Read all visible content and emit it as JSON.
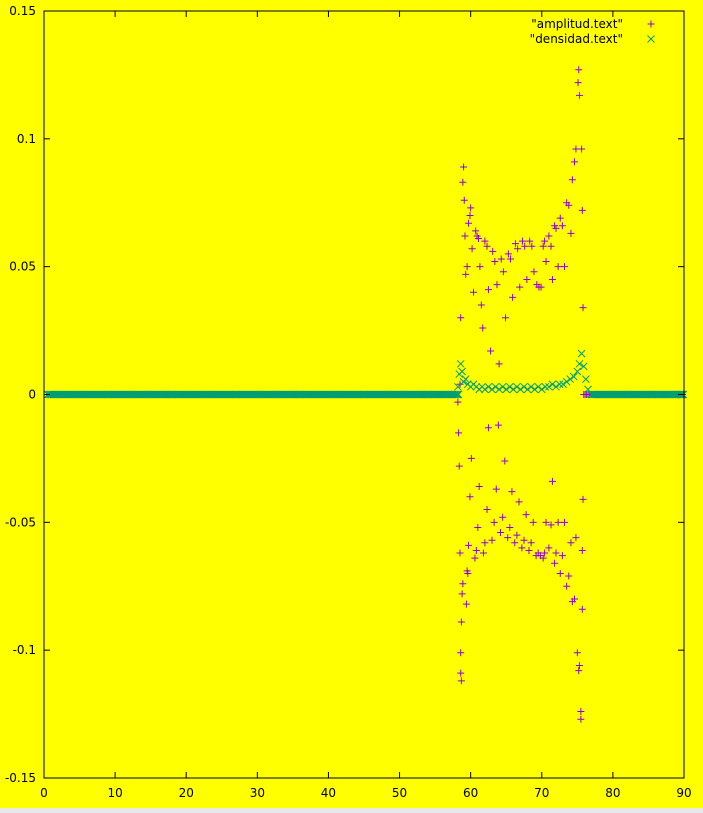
{
  "colors": {
    "background": "#ffff00",
    "axes": "#000000",
    "amplitud": "#9400d3",
    "densidad": "#009e73"
  },
  "chart_data": {
    "type": "scatter",
    "title": "",
    "xlabel": "",
    "ylabel": "",
    "xlim": [
      0,
      90
    ],
    "ylim": [
      -0.15,
      0.15
    ],
    "grid": false,
    "legend_position": "top-right",
    "x_ticks": [
      0,
      10,
      20,
      30,
      40,
      50,
      60,
      70,
      80,
      90
    ],
    "x_tick_labels": [
      "0",
      "10",
      "20",
      "30",
      "40",
      "50",
      "60",
      "70",
      "80",
      "90"
    ],
    "y_ticks": [
      -0.15,
      -0.1,
      -0.05,
      0,
      0.05,
      0.1,
      0.15
    ],
    "y_tick_labels": [
      "-0.15",
      "-0.1",
      "-0.05",
      "0",
      "0.05",
      "0.1",
      "0.15"
    ],
    "series": [
      {
        "name": "\"amplitud.text\"",
        "marker": "plus",
        "points": [
          [
            1,
            0
          ],
          [
            3,
            0
          ],
          [
            5,
            0
          ],
          [
            7,
            0
          ],
          [
            9,
            0
          ],
          [
            11,
            0
          ],
          [
            13,
            0
          ],
          [
            15,
            0
          ],
          [
            17,
            0
          ],
          [
            19,
            0
          ],
          [
            21,
            0
          ],
          [
            23,
            0
          ],
          [
            25,
            0
          ],
          [
            27,
            0
          ],
          [
            29,
            0
          ],
          [
            31,
            0
          ],
          [
            33,
            0
          ],
          [
            35,
            0
          ],
          [
            37,
            0
          ],
          [
            39,
            0
          ],
          [
            41,
            0
          ],
          [
            43,
            0
          ],
          [
            45,
            0
          ],
          [
            47,
            0
          ],
          [
            49,
            0
          ],
          [
            51,
            0
          ],
          [
            53,
            0
          ],
          [
            55,
            0
          ],
          [
            57,
            0
          ],
          [
            58.2,
            -0.003
          ],
          [
            58.3,
            -0.015
          ],
          [
            58.4,
            -0.028
          ],
          [
            58.5,
            -0.062
          ],
          [
            58.6,
            -0.109
          ],
          [
            58.7,
            -0.112
          ],
          [
            58.6,
            -0.101
          ],
          [
            58.7,
            -0.089
          ],
          [
            58.8,
            -0.078
          ],
          [
            58.9,
            -0.074
          ],
          [
            58.5,
            0.004
          ],
          [
            58.6,
            0.03
          ],
          [
            58.9,
            0.083
          ],
          [
            59.0,
            0.089
          ],
          [
            59.1,
            0.076
          ],
          [
            59.2,
            0.062
          ],
          [
            59.3,
            0.047
          ],
          [
            59.4,
            -0.082
          ],
          [
            59.5,
            -0.069
          ],
          [
            59.6,
            -0.07
          ],
          [
            59.7,
            -0.059
          ],
          [
            59.9,
            -0.04
          ],
          [
            60.1,
            -0.025
          ],
          [
            59.5,
            0.05
          ],
          [
            59.7,
            0.067
          ],
          [
            59.9,
            0.07
          ],
          [
            60.0,
            0.073
          ],
          [
            60.2,
            0.057
          ],
          [
            60.4,
            0.04
          ],
          [
            60.6,
            -0.064
          ],
          [
            60.8,
            -0.061
          ],
          [
            61.0,
            -0.052
          ],
          [
            61.2,
            -0.036
          ],
          [
            60.7,
            0.064
          ],
          [
            60.9,
            0.062
          ],
          [
            61.1,
            0.061
          ],
          [
            61.3,
            0.05
          ],
          [
            61.5,
            0.035
          ],
          [
            61.7,
            0.026
          ],
          [
            61.8,
            -0.062
          ],
          [
            62.0,
            -0.058
          ],
          [
            62.3,
            -0.045
          ],
          [
            62.5,
            -0.013
          ],
          [
            62.0,
            0.06
          ],
          [
            62.3,
            0.058
          ],
          [
            62.5,
            0.041
          ],
          [
            62.8,
            0.017
          ],
          [
            63.0,
            -0.057
          ],
          [
            63.3,
            -0.05
          ],
          [
            63.6,
            -0.037
          ],
          [
            63.9,
            -0.012
          ],
          [
            63.1,
            0.056
          ],
          [
            63.4,
            0.052
          ],
          [
            63.7,
            0.043
          ],
          [
            64.0,
            0.012
          ],
          [
            64.2,
            -0.054
          ],
          [
            64.5,
            -0.048
          ],
          [
            64.8,
            -0.026
          ],
          [
            64.3,
            0.053
          ],
          [
            64.6,
            0.048
          ],
          [
            64.9,
            0.03
          ],
          [
            65.2,
            -0.056
          ],
          [
            65.5,
            -0.052
          ],
          [
            65.8,
            -0.038
          ],
          [
            65.3,
            0.055
          ],
          [
            65.6,
            0.053
          ],
          [
            65.9,
            0.038
          ],
          [
            66.2,
            -0.058
          ],
          [
            66.5,
            -0.055
          ],
          [
            66.8,
            -0.042
          ],
          [
            66.3,
            0.059
          ],
          [
            66.6,
            0.057
          ],
          [
            66.9,
            0.042
          ],
          [
            67.2,
            -0.06
          ],
          [
            67.5,
            -0.057
          ],
          [
            67.8,
            -0.047
          ],
          [
            67.3,
            0.06
          ],
          [
            67.6,
            0.058
          ],
          [
            67.9,
            0.045
          ],
          [
            68.2,
            -0.061
          ],
          [
            68.5,
            -0.058
          ],
          [
            68.8,
            -0.05
          ],
          [
            68.3,
            0.06
          ],
          [
            68.6,
            0.058
          ],
          [
            68.9,
            0.048
          ],
          [
            69.2,
            -0.063
          ],
          [
            69.5,
            -0.062
          ],
          [
            69.8,
            -0.063
          ],
          [
            69.3,
            0.043
          ],
          [
            69.6,
            0.042
          ],
          [
            69.9,
            0.042
          ],
          [
            70.2,
            -0.064
          ],
          [
            70.4,
            -0.062
          ],
          [
            70.6,
            -0.05
          ],
          [
            70.2,
            0.058
          ],
          [
            70.4,
            0.06
          ],
          [
            70.6,
            0.052
          ],
          [
            71.0,
            -0.06
          ],
          [
            71.3,
            -0.051
          ],
          [
            71.5,
            -0.034
          ],
          [
            71.0,
            0.062
          ],
          [
            71.3,
            0.058
          ],
          [
            71.5,
            0.045
          ],
          [
            71.8,
            -0.066
          ],
          [
            72.0,
            -0.062
          ],
          [
            72.3,
            -0.05
          ],
          [
            71.8,
            0.066
          ],
          [
            72.0,
            0.065
          ],
          [
            72.3,
            0.05
          ],
          [
            72.6,
            -0.07
          ],
          [
            72.9,
            -0.063
          ],
          [
            73.2,
            -0.05
          ],
          [
            72.6,
            0.069
          ],
          [
            72.9,
            0.066
          ],
          [
            73.2,
            0.05
          ],
          [
            73.5,
            -0.075
          ],
          [
            73.8,
            -0.071
          ],
          [
            74.1,
            -0.058
          ],
          [
            73.5,
            0.075
          ],
          [
            73.8,
            0.074
          ],
          [
            74.1,
            0.063
          ],
          [
            74.3,
            -0.081
          ],
          [
            74.6,
            -0.08
          ],
          [
            74.8,
            -0.056
          ],
          [
            74.3,
            0.084
          ],
          [
            74.6,
            0.091
          ],
          [
            74.8,
            0.096
          ],
          [
            75.0,
            -0.101
          ],
          [
            75.2,
            -0.108
          ],
          [
            75.3,
            -0.106
          ],
          [
            75.1,
            0.122
          ],
          [
            75.2,
            0.127
          ],
          [
            75.3,
            0.117
          ],
          [
            75.5,
            -0.124
          ],
          [
            75.5,
            -0.127
          ],
          [
            75.7,
            -0.084
          ],
          [
            75.7,
            -0.061
          ],
          [
            75.8,
            -0.041
          ],
          [
            75.6,
            0.096
          ],
          [
            75.7,
            0.072
          ],
          [
            75.8,
            0.034
          ],
          [
            75.9,
            0.0
          ],
          [
            77,
            0
          ],
          [
            79,
            0
          ],
          [
            81,
            0
          ],
          [
            83,
            0
          ],
          [
            85,
            0
          ],
          [
            87,
            0
          ],
          [
            89,
            0
          ]
        ]
      },
      {
        "name": "\"densidad.text\"",
        "marker": "cross",
        "points": [
          [
            0.5,
            0
          ],
          [
            1.5,
            0
          ],
          [
            2.5,
            0
          ],
          [
            3.5,
            0
          ],
          [
            4.5,
            0
          ],
          [
            5.5,
            0
          ],
          [
            6.5,
            0
          ],
          [
            7.5,
            0
          ],
          [
            8.5,
            0
          ],
          [
            9.5,
            0
          ],
          [
            10.5,
            0
          ],
          [
            11.5,
            0
          ],
          [
            12.5,
            0
          ],
          [
            13.5,
            0
          ],
          [
            14.5,
            0
          ],
          [
            15.5,
            0
          ],
          [
            16.5,
            0
          ],
          [
            17.5,
            0
          ],
          [
            18.5,
            0
          ],
          [
            19.5,
            0
          ],
          [
            20.5,
            0
          ],
          [
            21.5,
            0
          ],
          [
            22.5,
            0
          ],
          [
            23.5,
            0
          ],
          [
            24.5,
            0
          ],
          [
            25.5,
            0
          ],
          [
            26.5,
            0
          ],
          [
            27.5,
            0
          ],
          [
            28.5,
            0
          ],
          [
            29.5,
            0
          ],
          [
            30.5,
            0
          ],
          [
            31.5,
            0
          ],
          [
            32.5,
            0
          ],
          [
            33.5,
            0
          ],
          [
            34.5,
            0
          ],
          [
            35.5,
            0
          ],
          [
            36.5,
            0
          ],
          [
            37.5,
            0
          ],
          [
            38.5,
            0
          ],
          [
            39.5,
            0
          ],
          [
            40.5,
            0
          ],
          [
            41.5,
            0
          ],
          [
            42.5,
            0
          ],
          [
            43.5,
            0
          ],
          [
            44.5,
            0
          ],
          [
            45.5,
            0
          ],
          [
            46.5,
            0
          ],
          [
            47.5,
            0
          ],
          [
            48.5,
            0
          ],
          [
            49.5,
            0
          ],
          [
            50.5,
            0
          ],
          [
            51.5,
            0
          ],
          [
            52.5,
            0
          ],
          [
            53.5,
            0
          ],
          [
            54.5,
            0
          ],
          [
            55.5,
            0
          ],
          [
            56.5,
            0
          ],
          [
            57.5,
            0
          ],
          [
            58.2,
            0.003
          ],
          [
            58.4,
            0.008
          ],
          [
            58.6,
            0.012
          ],
          [
            58.8,
            0.009
          ],
          [
            59.0,
            0.005
          ],
          [
            59.3,
            0.006
          ],
          [
            59.6,
            0.004
          ],
          [
            60.0,
            0.003
          ],
          [
            60.4,
            0.004
          ],
          [
            60.8,
            0.003
          ],
          [
            61.2,
            0.002
          ],
          [
            61.6,
            0.003
          ],
          [
            62.0,
            0.002
          ],
          [
            62.5,
            0.003
          ],
          [
            63.0,
            0.002
          ],
          [
            63.5,
            0.003
          ],
          [
            64.0,
            0.002
          ],
          [
            64.5,
            0.003
          ],
          [
            65.0,
            0.002
          ],
          [
            65.5,
            0.003
          ],
          [
            66.0,
            0.002
          ],
          [
            66.5,
            0.003
          ],
          [
            67.0,
            0.002
          ],
          [
            67.5,
            0.003
          ],
          [
            68.0,
            0.002
          ],
          [
            68.5,
            0.003
          ],
          [
            69.0,
            0.002
          ],
          [
            69.5,
            0.003
          ],
          [
            70.0,
            0.002
          ],
          [
            70.5,
            0.003
          ],
          [
            71.0,
            0.003
          ],
          [
            71.5,
            0.004
          ],
          [
            72.0,
            0.003
          ],
          [
            72.5,
            0.004
          ],
          [
            73.0,
            0.004
          ],
          [
            73.5,
            0.005
          ],
          [
            74.0,
            0.006
          ],
          [
            74.5,
            0.007
          ],
          [
            75.0,
            0.009
          ],
          [
            75.3,
            0.012
          ],
          [
            75.6,
            0.016
          ],
          [
            75.9,
            0.011
          ],
          [
            76.2,
            0.006
          ],
          [
            76.5,
            0.002
          ],
          [
            77,
            0
          ],
          [
            78,
            0
          ],
          [
            79,
            0
          ],
          [
            80,
            0
          ],
          [
            81,
            0
          ],
          [
            82,
            0
          ],
          [
            83,
            0
          ],
          [
            84,
            0
          ],
          [
            85,
            0
          ],
          [
            86,
            0
          ],
          [
            87,
            0
          ],
          [
            88,
            0
          ],
          [
            89,
            0
          ],
          [
            89.5,
            0
          ]
        ]
      }
    ]
  }
}
